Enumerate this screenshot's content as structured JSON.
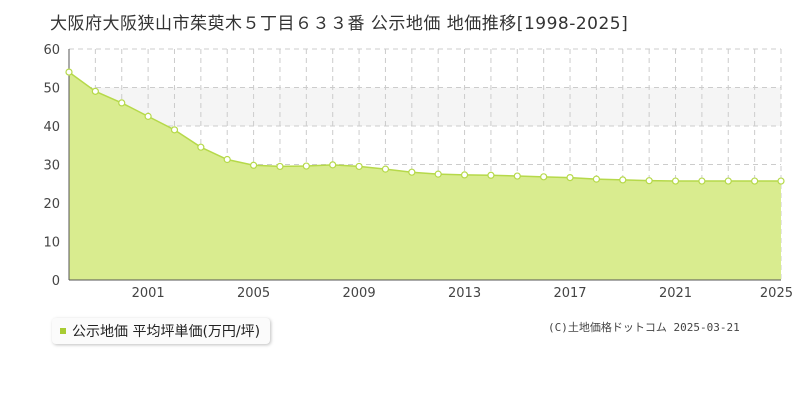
{
  "title": "大阪府大阪狭山市茱萸木５丁目６３３番 公示地価 地価推移[1998-2025]",
  "legend_label": "公示地価 平均坪単価(万円/坪)",
  "copyright": "(C)土地価格ドットコム 2025-03-21",
  "colors": {
    "fill": "#d9ec8f",
    "line": "#b6d94a",
    "marker_stroke": "#b6d94a",
    "grid": "#cccccc",
    "band": "#f5f5f5"
  },
  "chart_data": {
    "type": "area",
    "x": [
      1998,
      1999,
      2000,
      2001,
      2002,
      2003,
      2004,
      2005,
      2006,
      2007,
      2008,
      2009,
      2010,
      2011,
      2012,
      2013,
      2014,
      2015,
      2016,
      2017,
      2018,
      2019,
      2020,
      2021,
      2022,
      2023,
      2024,
      2025
    ],
    "values": [
      54.0,
      49.0,
      46.0,
      42.5,
      39.0,
      34.5,
      31.3,
      29.8,
      29.5,
      29.6,
      29.9,
      29.5,
      28.8,
      28.0,
      27.5,
      27.3,
      27.2,
      27.0,
      26.8,
      26.6,
      26.2,
      26.0,
      25.8,
      25.7,
      25.7,
      25.7,
      25.7,
      25.7
    ],
    "x_ticks": [
      "2001",
      "2005",
      "2009",
      "2013",
      "2017",
      "2021",
      "2025"
    ],
    "y_ticks": [
      "0",
      "10",
      "20",
      "30",
      "40",
      "50",
      "60"
    ],
    "ylim": [
      0,
      60
    ],
    "xlim": [
      1998,
      2025
    ],
    "grid": true,
    "legend": "bottom-left"
  }
}
